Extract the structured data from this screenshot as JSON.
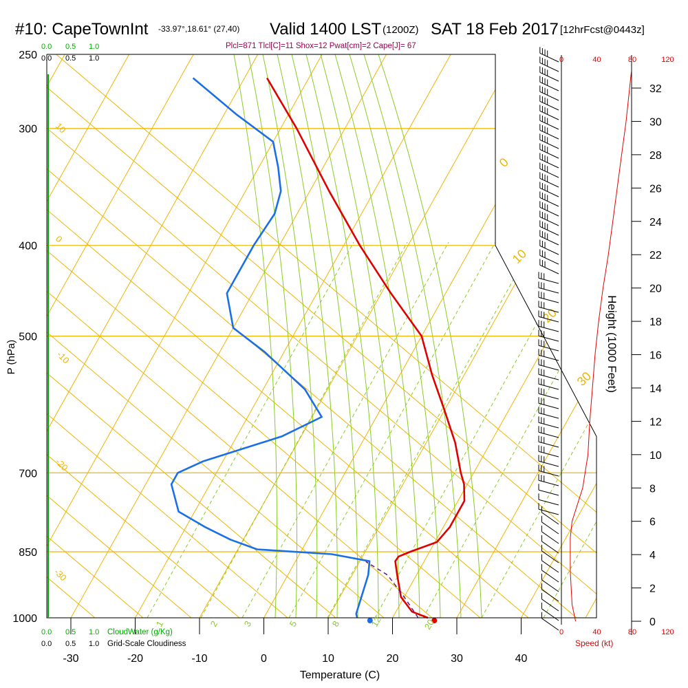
{
  "colors": {
    "temperature": "#e00000",
    "dewpoint": "#1a6fe6",
    "parcel": "#5a1a8a",
    "isobar": "#f0b400",
    "isotherm": "#f0b400",
    "dry_adiabat": "#f0b400",
    "moist_adiabat": "#88cc22",
    "mixing_ratio": "#88cc22",
    "cloud_water": "#00aa00",
    "stability_text": "#99004d",
    "wind_speed": "#e00000",
    "frame": "#000000"
  },
  "header": {
    "station": "#10: CapeTownInt",
    "coords": "-33.97°,18.61° (27,40)",
    "valid": "Valid 1400 LST",
    "zulu": "(1200Z)",
    "date": "SAT 18 Feb 2017",
    "forecast": "[12hrFcst@0443z]",
    "indices": "Plcl=871 Tlcl[C]=11 Shox=12 Pwat[cm]=2 Cape[J]= 67"
  },
  "labels": {
    "cloud_water": "CloudWater (g/Kg)",
    "cloudiness": "Grid-Scale Cloudiness",
    "speed": "Speed (kt)",
    "height": "Height (1000 Feet)"
  },
  "cloud_scale": {
    "top_green": [
      "0.0",
      "0.5",
      "1.0"
    ],
    "top_black": [
      "0.0",
      "0.5",
      "1.0"
    ],
    "bottom_green": [
      "0.0",
      "0.5",
      "1.0"
    ],
    "bottom_black": [
      "0.0",
      "0.5",
      "1.0"
    ]
  },
  "chart_data": {
    "type": "line",
    "subtype": "skew-T log-P sounding",
    "xlabel": "Temperature (C)",
    "ylabel": "P (hPa)",
    "x_ticks": [
      -30,
      -20,
      -10,
      0,
      10,
      20,
      30,
      40
    ],
    "pressure_ticks": [
      250,
      300,
      400,
      500,
      700,
      850,
      1000
    ],
    "height_ticks_kft": [
      0,
      2,
      4,
      6,
      8,
      10,
      12,
      14,
      16,
      18,
      20,
      22,
      24,
      26,
      28,
      30,
      32
    ],
    "ylabel_right": "Height (1000 Feet)",
    "speed_ticks_kt": [
      0,
      40,
      80,
      120
    ],
    "dry_adiabat_labels": [
      "10",
      "0",
      "-10",
      "-20",
      "-30"
    ],
    "moist_adiabat_labels": [
      "0",
      "10",
      "20",
      "30"
    ],
    "mixing_ratio_labels": [
      "1",
      "2",
      "3",
      "5",
      "8",
      "12",
      "20"
    ],
    "series": [
      {
        "name": "Temperature",
        "points": [
          {
            "p": 1000,
            "t": 25.5
          },
          {
            "p": 985,
            "t": 22.5
          },
          {
            "p": 950,
            "t": 19.5
          },
          {
            "p": 900,
            "t": 17.0
          },
          {
            "p": 870,
            "t": 15.5
          },
          {
            "p": 860,
            "t": 15.6
          },
          {
            "p": 850,
            "t": 17.0
          },
          {
            "p": 830,
            "t": 20.3
          },
          {
            "p": 800,
            "t": 21.0
          },
          {
            "p": 750,
            "t": 21.0
          },
          {
            "p": 720,
            "t": 19.5
          },
          {
            "p": 700,
            "t": 18.0
          },
          {
            "p": 650,
            "t": 14.5
          },
          {
            "p": 600,
            "t": 10.0
          },
          {
            "p": 550,
            "t": 5.0
          },
          {
            "p": 500,
            "t": 0.0
          },
          {
            "p": 470,
            "t": -5.0
          },
          {
            "p": 450,
            "t": -8.5
          },
          {
            "p": 400,
            "t": -17.5
          },
          {
            "p": 350,
            "t": -27.0
          },
          {
            "p": 300,
            "t": -37.5
          },
          {
            "p": 265,
            "t": -46.5
          }
        ]
      },
      {
        "name": "Dewpoint",
        "points": [
          {
            "p": 1000,
            "t": 14.5
          },
          {
            "p": 990,
            "t": 14.0
          },
          {
            "p": 900,
            "t": 12.5
          },
          {
            "p": 870,
            "t": 11.5
          },
          {
            "p": 855,
            "t": 5.0
          },
          {
            "p": 845,
            "t": -7.0
          },
          {
            "p": 825,
            "t": -12.0
          },
          {
            "p": 800,
            "t": -17.0
          },
          {
            "p": 770,
            "t": -22.5
          },
          {
            "p": 720,
            "t": -26.0
          },
          {
            "p": 700,
            "t": -26.0
          },
          {
            "p": 680,
            "t": -23.0
          },
          {
            "p": 640,
            "t": -13.0
          },
          {
            "p": 610,
            "t": -8.5
          },
          {
            "p": 570,
            "t": -13.5
          },
          {
            "p": 520,
            "t": -23.0
          },
          {
            "p": 490,
            "t": -30.0
          },
          {
            "p": 450,
            "t": -34.0
          },
          {
            "p": 400,
            "t": -34.0
          },
          {
            "p": 370,
            "t": -33.5
          },
          {
            "p": 350,
            "t": -34.5
          },
          {
            "p": 330,
            "t": -37.0
          },
          {
            "p": 310,
            "t": -40.0
          },
          {
            "p": 290,
            "t": -48.0
          },
          {
            "p": 265,
            "t": -58.0
          }
        ]
      },
      {
        "name": "Parcel",
        "points": [
          {
            "p": 1000,
            "t": 24.0
          },
          {
            "p": 950,
            "t": 20.0
          },
          {
            "p": 900,
            "t": 15.5
          },
          {
            "p": 871,
            "t": 11.0
          }
        ]
      },
      {
        "name": "Wind speed (kt)",
        "points": [
          {
            "h": 0,
            "v": 16
          },
          {
            "h": 1,
            "v": 12
          },
          {
            "h": 2,
            "v": 11
          },
          {
            "h": 3,
            "v": 10
          },
          {
            "h": 4,
            "v": 10
          },
          {
            "h": 5,
            "v": 10
          },
          {
            "h": 6,
            "v": 12
          },
          {
            "h": 7,
            "v": 18
          },
          {
            "h": 8,
            "v": 24
          },
          {
            "h": 10,
            "v": 30
          },
          {
            "h": 12,
            "v": 32
          },
          {
            "h": 14,
            "v": 35
          },
          {
            "h": 16,
            "v": 38
          },
          {
            "h": 18,
            "v": 42
          },
          {
            "h": 20,
            "v": 47
          },
          {
            "h": 22,
            "v": 53
          },
          {
            "h": 24,
            "v": 58
          },
          {
            "h": 26,
            "v": 63
          },
          {
            "h": 28,
            "v": 68
          },
          {
            "h": 30,
            "v": 73
          },
          {
            "h": 32,
            "v": 77
          },
          {
            "h": 33,
            "v": 79
          }
        ]
      }
    ],
    "surface_temperature": 26.5,
    "surface_dewpoint": 16.5
  }
}
